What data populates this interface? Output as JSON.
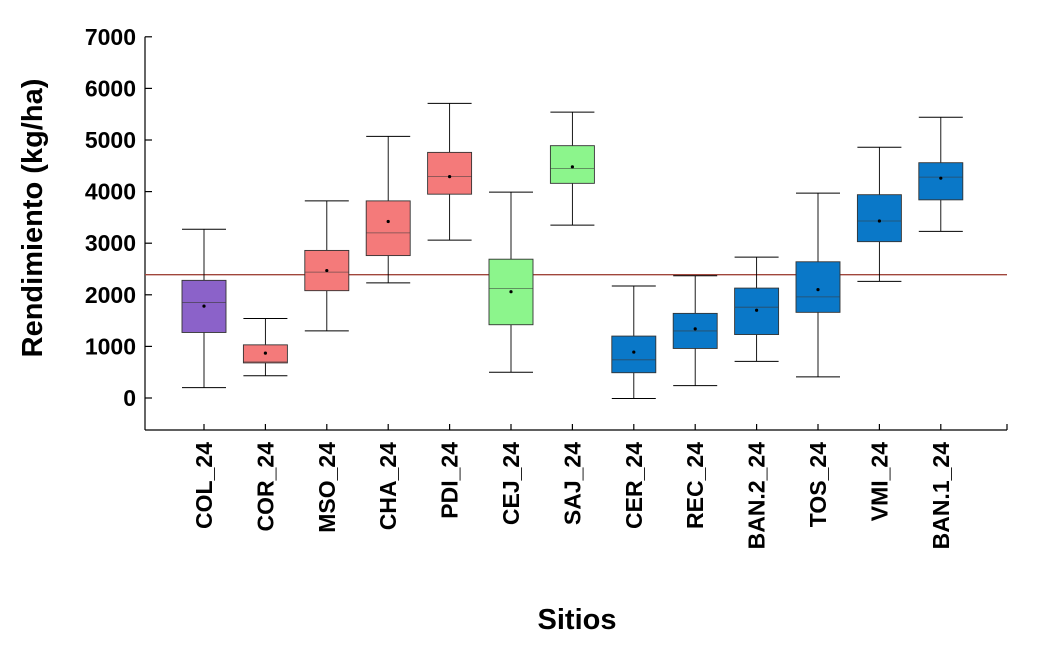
{
  "chart_data": {
    "type": "box",
    "title": "",
    "xlabel": "Sitios",
    "ylabel": "Rendimiento (kg/ha)",
    "ylim": [
      -600,
      7000
    ],
    "yticks": [
      0,
      1000,
      2000,
      3000,
      4000,
      5000,
      6000,
      7000
    ],
    "grid": false,
    "reference_line": {
      "value": 2390,
      "color": "#a0463c"
    },
    "categories": [
      "COL_24",
      "COR_24",
      "MSO_24",
      "CHA_24",
      "PDI_24",
      "CEJ_24",
      "SAJ_24",
      "CER_24",
      "REC_24",
      "BAN.2_24",
      "TOS_24",
      "VMI_24",
      "BAN.1_24"
    ],
    "boxes": [
      {
        "name": "COL_24",
        "min": 200,
        "q1": 1270,
        "median": 1850,
        "q3": 2280,
        "max": 3270,
        "mean": 1780,
        "color": "#8b62c9"
      },
      {
        "name": "COR_24",
        "min": 430,
        "q1": 680,
        "median": 700,
        "q3": 1030,
        "max": 1540,
        "mean": 870,
        "color": "#f47a7a"
      },
      {
        "name": "MSO_24",
        "min": 1300,
        "q1": 2080,
        "median": 2440,
        "q3": 2860,
        "max": 3820,
        "mean": 2470,
        "color": "#f47a7a"
      },
      {
        "name": "CHA_24",
        "min": 2230,
        "q1": 2760,
        "median": 3200,
        "q3": 3820,
        "max": 5070,
        "mean": 3420,
        "color": "#f47a7a"
      },
      {
        "name": "PDI_24",
        "min": 3060,
        "q1": 3950,
        "median": 4290,
        "q3": 4760,
        "max": 5710,
        "mean": 4290,
        "color": "#f47a7a"
      },
      {
        "name": "CEJ_24",
        "min": 500,
        "q1": 1420,
        "median": 2120,
        "q3": 2690,
        "max": 3990,
        "mean": 2060,
        "color": "#8cf58c"
      },
      {
        "name": "SAJ_24",
        "min": 3350,
        "q1": 4160,
        "median": 4450,
        "q3": 4890,
        "max": 5540,
        "mean": 4480,
        "color": "#8cf58c"
      },
      {
        "name": "CER_24",
        "min": -10,
        "q1": 490,
        "median": 740,
        "q3": 1200,
        "max": 2170,
        "mean": 890,
        "color": "#0a78c8"
      },
      {
        "name": "REC_24",
        "min": 240,
        "q1": 960,
        "median": 1300,
        "q3": 1640,
        "max": 2370,
        "mean": 1340,
        "color": "#0a78c8"
      },
      {
        "name": "BAN.2_24",
        "min": 710,
        "q1": 1230,
        "median": 1760,
        "q3": 2130,
        "max": 2730,
        "mean": 1700,
        "color": "#0a78c8"
      },
      {
        "name": "TOS_24",
        "min": 410,
        "q1": 1660,
        "median": 1960,
        "q3": 2640,
        "max": 3970,
        "mean": 2100,
        "color": "#0a78c8"
      },
      {
        "name": "VMI_24",
        "min": 2260,
        "q1": 3030,
        "median": 3430,
        "q3": 3940,
        "max": 4860,
        "mean": 3430,
        "color": "#0a78c8"
      },
      {
        "name": "BAN.1_24",
        "min": 3230,
        "q1": 3840,
        "median": 4280,
        "q3": 4560,
        "max": 5440,
        "mean": 4260,
        "color": "#0a78c8"
      }
    ]
  }
}
